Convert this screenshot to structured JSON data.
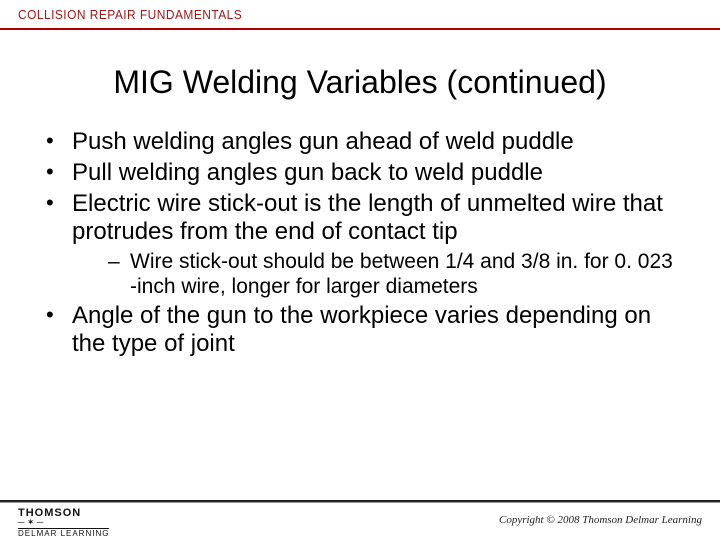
{
  "header": {
    "brand": "COLLISION REPAIR FUNDAMENTALS",
    "rule_color": "#b20000"
  },
  "title": "MIG Welding Variables (continued)",
  "bullets": [
    {
      "text": "Push welding angles gun ahead of weld puddle"
    },
    {
      "text": "Pull welding angles gun back to weld puddle"
    },
    {
      "text": "Electric wire stick-out is the length of unmelted wire that protrudes from the end of contact tip",
      "sub": [
        "Wire stick-out should be between 1/4 and 3/8 in. for 0. 023 -inch wire, longer for larger diameters"
      ]
    },
    {
      "text": "Angle of the gun to the workpiece varies depending on the type of joint"
    }
  ],
  "footer": {
    "publisher_top": "THOMSON",
    "publisher_bottom": "DELMAR LEARNING",
    "copyright": "Copyright © 2008 Thomson Delmar Learning"
  },
  "style": {
    "title_fontsize": 32,
    "bullet_fontsize": 24,
    "sub_fontsize": 21,
    "text_color": "#000000",
    "background_color": "#ffffff",
    "header_brand_color": "#a01818",
    "footer_rule_color": "#222222"
  }
}
